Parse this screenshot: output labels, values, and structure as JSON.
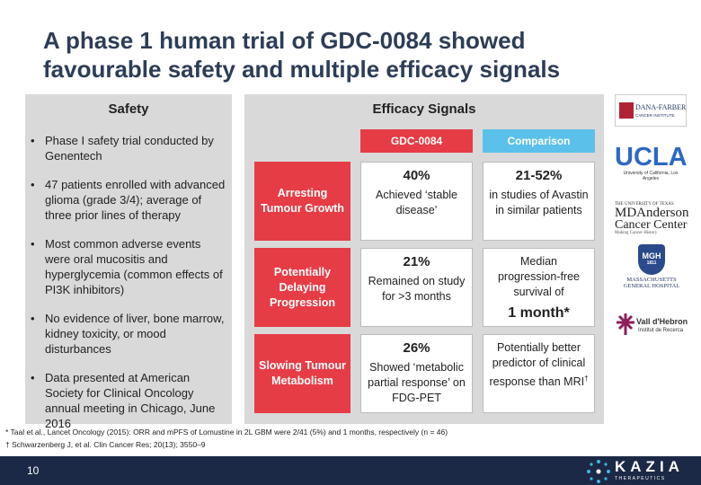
{
  "header": {
    "title_lines": [
      "A phase 1 human trial of GDC-0084 showed",
      "favourable safety and multiple efficacy signals"
    ]
  },
  "safety": {
    "heading": "Safety",
    "bullets": [
      "Phase I safety trial conducted by Genentech",
      "47 patients enrolled with advanced glioma (grade 3/4); average of three prior lines of therapy",
      "Most common adverse events were oral mucositis and hyperglycemia (common effects of PI3K inhibitors)",
      "No evidence of liver, bone marrow, kidney toxicity, or mood disturbances",
      "Data presented at American Society for Clinical Oncology annual meeting in Chicago, June 2016"
    ]
  },
  "efficacy": {
    "heading": "Efficacy Signals",
    "columns": [
      "GDC-0084",
      "Comparison"
    ],
    "rows": [
      {
        "label": "Arresting Tumour Growth",
        "gdc": {
          "value": "40%",
          "text": "Achieved ‘stable disease’"
        },
        "comparison": {
          "value": "21-52%",
          "text": "in studies of Avastin in similar patients"
        }
      },
      {
        "label": "Potentially Delaying Progression",
        "gdc": {
          "value": "21%",
          "text": "Remained on study for >3 months"
        },
        "comparison": {
          "text": "Median progression-free survival of",
          "value": "1 month*"
        }
      },
      {
        "label": "Slowing Tumour Metabolism",
        "gdc": {
          "value": "26%",
          "text": "Showed ‘metabolic partial response’ on FDG-PET"
        },
        "comparison": {
          "text": "Potentially better predictor of clinical response than MRI",
          "mark": "†"
        }
      }
    ]
  },
  "logos": {
    "dana_farber": [
      "DANA-FARBER",
      "CANCER INSTITUTE"
    ],
    "ucla": [
      "UCLA",
      "University of California, Los Angeles"
    ],
    "md_anderson": [
      "THE UNIVERSITY OF TEXAS",
      "MDAnderson",
      "Cancer Center",
      "Making Cancer History"
    ],
    "mgh": [
      "MGH",
      "1811",
      "MASSACHUSETTS",
      "GENERAL HOSPITAL"
    ],
    "vall_hebron": [
      "Vall d'Hebron",
      "Institut de Recerca"
    ]
  },
  "footnotes": [
    "* Taal et al., Lancet Oncology (2015): ORR and mPFS of Lomustine in 2L GBM were 2/41 (5%) and 1 months, respectively (n = 46)",
    "†  Schwarzenberg J, et al. Clin Cancer Res; 20(13); 3550–9"
  ],
  "footer": {
    "page": "10",
    "brand": "KAZIA",
    "tagline": "THERAPEUTICS"
  }
}
